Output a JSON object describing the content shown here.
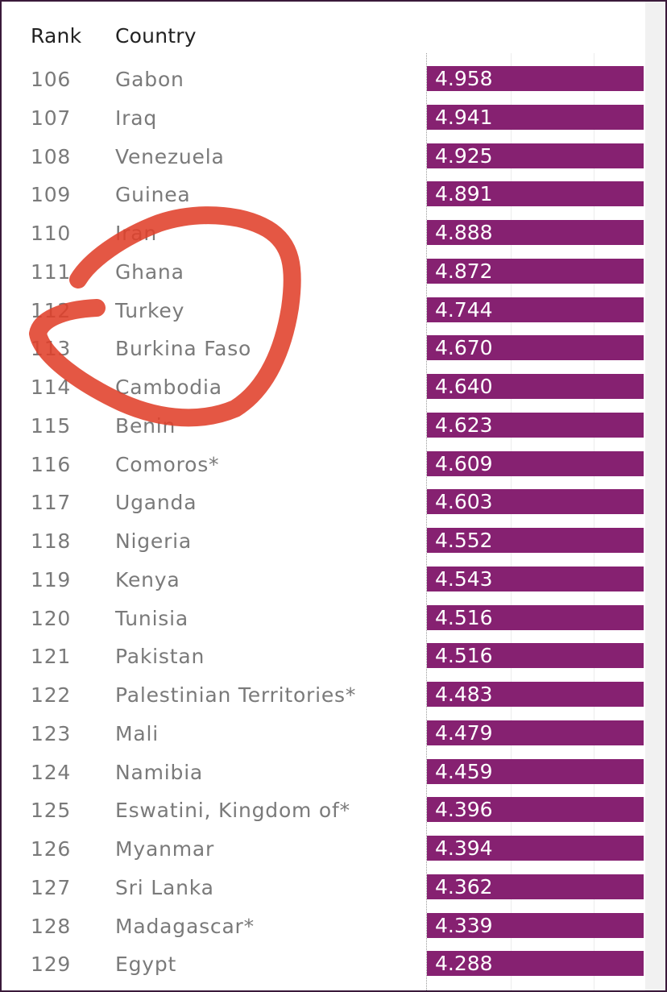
{
  "table": {
    "rank_header": "Rank",
    "country_header": "Country"
  },
  "colors": {
    "bar": "#862171",
    "highlight_mark": "#e0402a"
  },
  "chart_data": {
    "type": "bar",
    "orientation": "horizontal",
    "columns": [
      "Rank",
      "Country"
    ],
    "ranks": [
      106,
      107,
      108,
      109,
      110,
      111,
      112,
      113,
      114,
      115,
      116,
      117,
      118,
      119,
      120,
      121,
      122,
      123,
      124,
      125,
      126,
      127,
      128,
      129
    ],
    "categories": [
      "Gabon",
      "Iraq",
      "Venezuela",
      "Guinea",
      "Iran",
      "Ghana",
      "Turkey",
      "Burkina Faso",
      "Cambodia",
      "Benin",
      "Comoros*",
      "Uganda",
      "Nigeria",
      "Kenya",
      "Tunisia",
      "Pakistan",
      "Palestinian Territories*",
      "Mali",
      "Namibia",
      "Eswatini, Kingdom of*",
      "Myanmar",
      "Sri Lanka",
      "Madagascar*",
      "Egypt"
    ],
    "values": [
      4.958,
      4.941,
      4.925,
      4.891,
      4.888,
      4.872,
      4.744,
      4.67,
      4.64,
      4.623,
      4.609,
      4.603,
      4.552,
      4.543,
      4.516,
      4.516,
      4.483,
      4.479,
      4.459,
      4.396,
      4.394,
      4.362,
      4.339,
      4.288
    ],
    "labels": [
      "4.958",
      "4.941",
      "4.925",
      "4.891",
      "4.888",
      "4.872",
      "4.744",
      "4.670",
      "4.640",
      "4.623",
      "4.609",
      "4.603",
      "4.552",
      "4.543",
      "4.516",
      "4.516",
      "4.483",
      "4.479",
      "4.459",
      "4.396",
      "4.394",
      "4.362",
      "4.339",
      "4.288"
    ],
    "highlighted": [
      "Iran",
      "Ghana",
      "Turkey",
      "Burkina Faso",
      "Cambodia"
    ],
    "bars_clipped_at_right_edge": true,
    "grid": true
  }
}
